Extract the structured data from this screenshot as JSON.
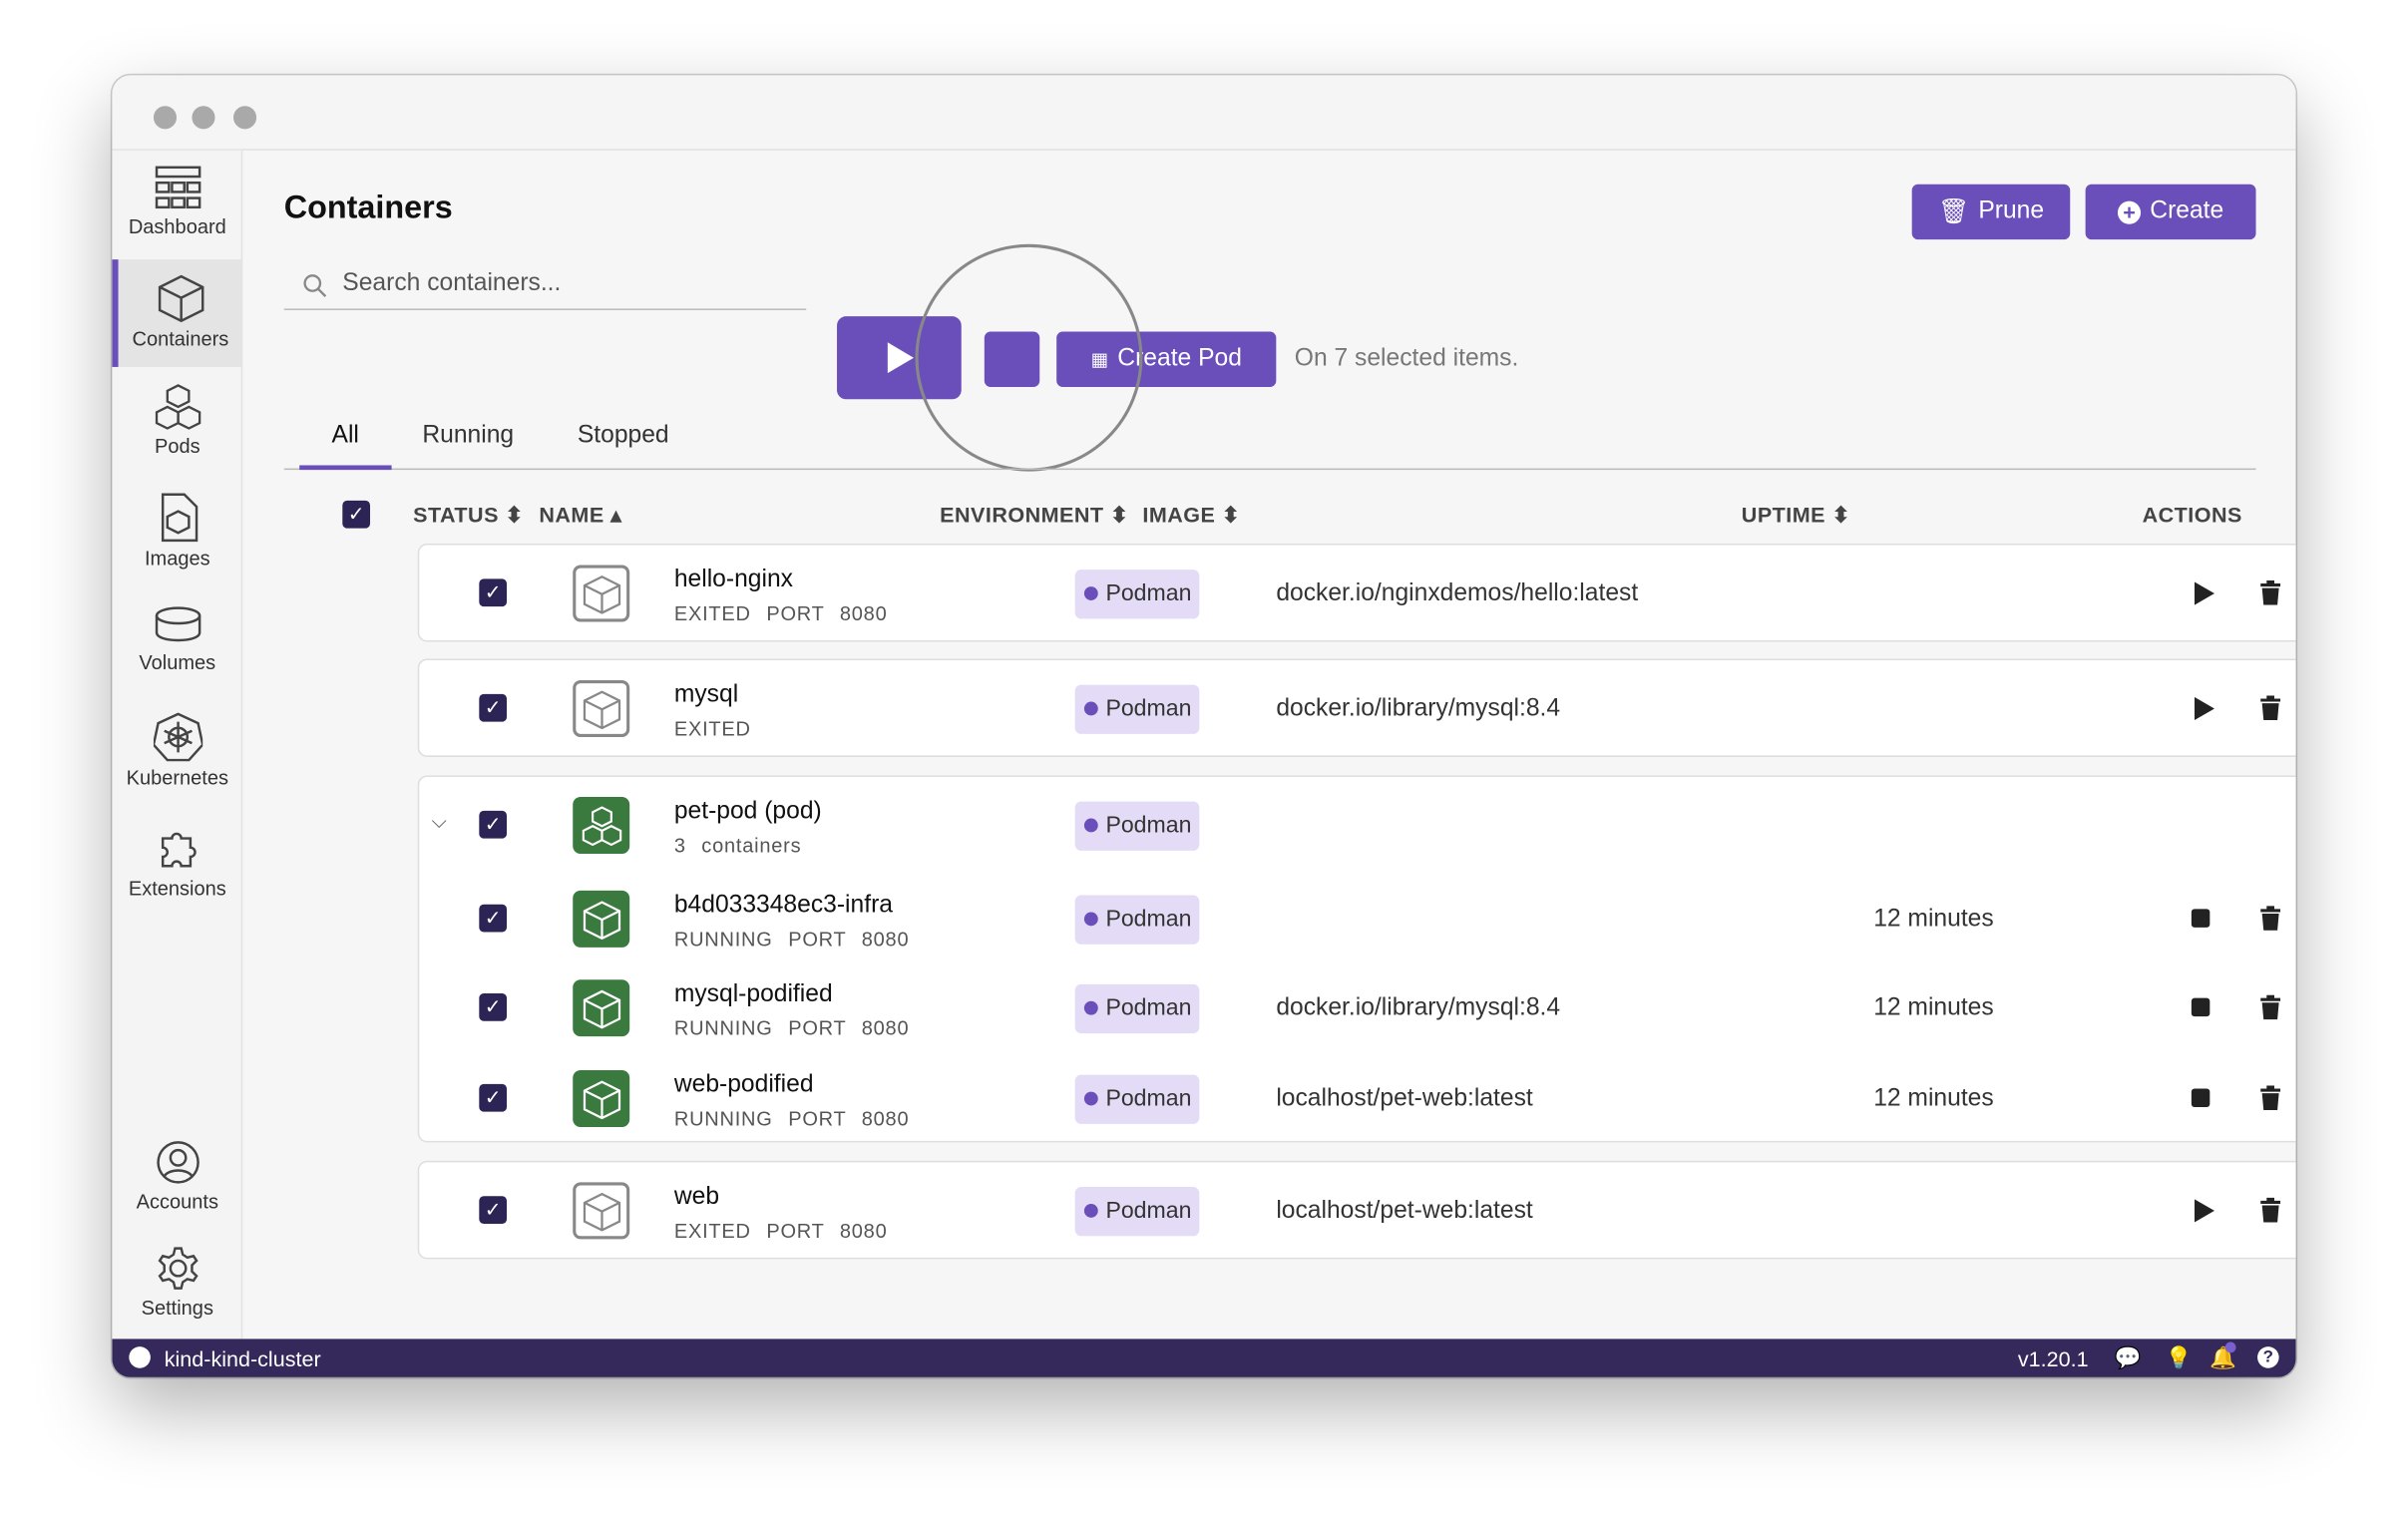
{
  "sidebar": {
    "items": [
      {
        "label": "Dashboard",
        "icon": "dashboard-icon"
      },
      {
        "label": "Containers",
        "icon": "container-icon",
        "active": true
      },
      {
        "label": "Pods",
        "icon": "pods-icon"
      },
      {
        "label": "Images",
        "icon": "images-icon"
      },
      {
        "label": "Volumes",
        "icon": "volumes-icon"
      },
      {
        "label": "Kubernetes",
        "icon": "kubernetes-icon"
      },
      {
        "label": "Extensions",
        "icon": "extensions-icon"
      }
    ],
    "bottom": [
      {
        "label": "Accounts",
        "icon": "account-icon"
      },
      {
        "label": "Settings",
        "icon": "gear-icon"
      }
    ]
  },
  "header": {
    "title": "Containers",
    "prune": "Prune",
    "create": "Create"
  },
  "search": {
    "placeholder": "Search containers..."
  },
  "bulk": {
    "create_pod": "Create Pod",
    "selected_text": "On 7 selected items."
  },
  "tabs": [
    "All",
    "Running",
    "Stopped"
  ],
  "columns": {
    "status": "STATUS",
    "name": "NAME",
    "environment": "ENVIRONMENT",
    "image": "IMAGE",
    "uptime": "UPTIME",
    "actions": "ACTIONS"
  },
  "rows": [
    {
      "name": "hello-nginx",
      "state": "EXITED",
      "port": "PORT 8080",
      "env": "Podman",
      "image": "docker.io/nginxdemos/hello:latest",
      "uptime": ""
    },
    {
      "name": "mysql",
      "state": "EXITED",
      "port": "",
      "env": "Podman",
      "image": "docker.io/library/mysql:8.4",
      "uptime": ""
    }
  ],
  "pod": {
    "name": "pet-pod (pod)",
    "sub": "3 containers",
    "env": "Podman",
    "children": [
      {
        "name": "b4d033348ec3-infra",
        "state": "RUNNING",
        "port": "PORT 8080",
        "env": "Podman",
        "image": "",
        "uptime": "12 minutes"
      },
      {
        "name": "mysql-podified",
        "state": "RUNNING",
        "port": "PORT 8080",
        "env": "Podman",
        "image": "docker.io/library/mysql:8.4",
        "uptime": "12 minutes"
      },
      {
        "name": "web-podified",
        "state": "RUNNING",
        "port": "PORT 8080",
        "env": "Podman",
        "image": "localhost/pet-web:latest",
        "uptime": "12 minutes"
      }
    ]
  },
  "last": {
    "name": "web",
    "state": "EXITED",
    "port": "PORT 8080",
    "env": "Podman",
    "image": "localhost/pet-web:latest",
    "uptime": ""
  },
  "statusbar": {
    "cluster": "kind-kind-cluster",
    "version": "v1.20.1"
  },
  "colors": {
    "accent": "#6a4fba",
    "statusbar": "#35295b",
    "running": "#3b7a3f"
  }
}
